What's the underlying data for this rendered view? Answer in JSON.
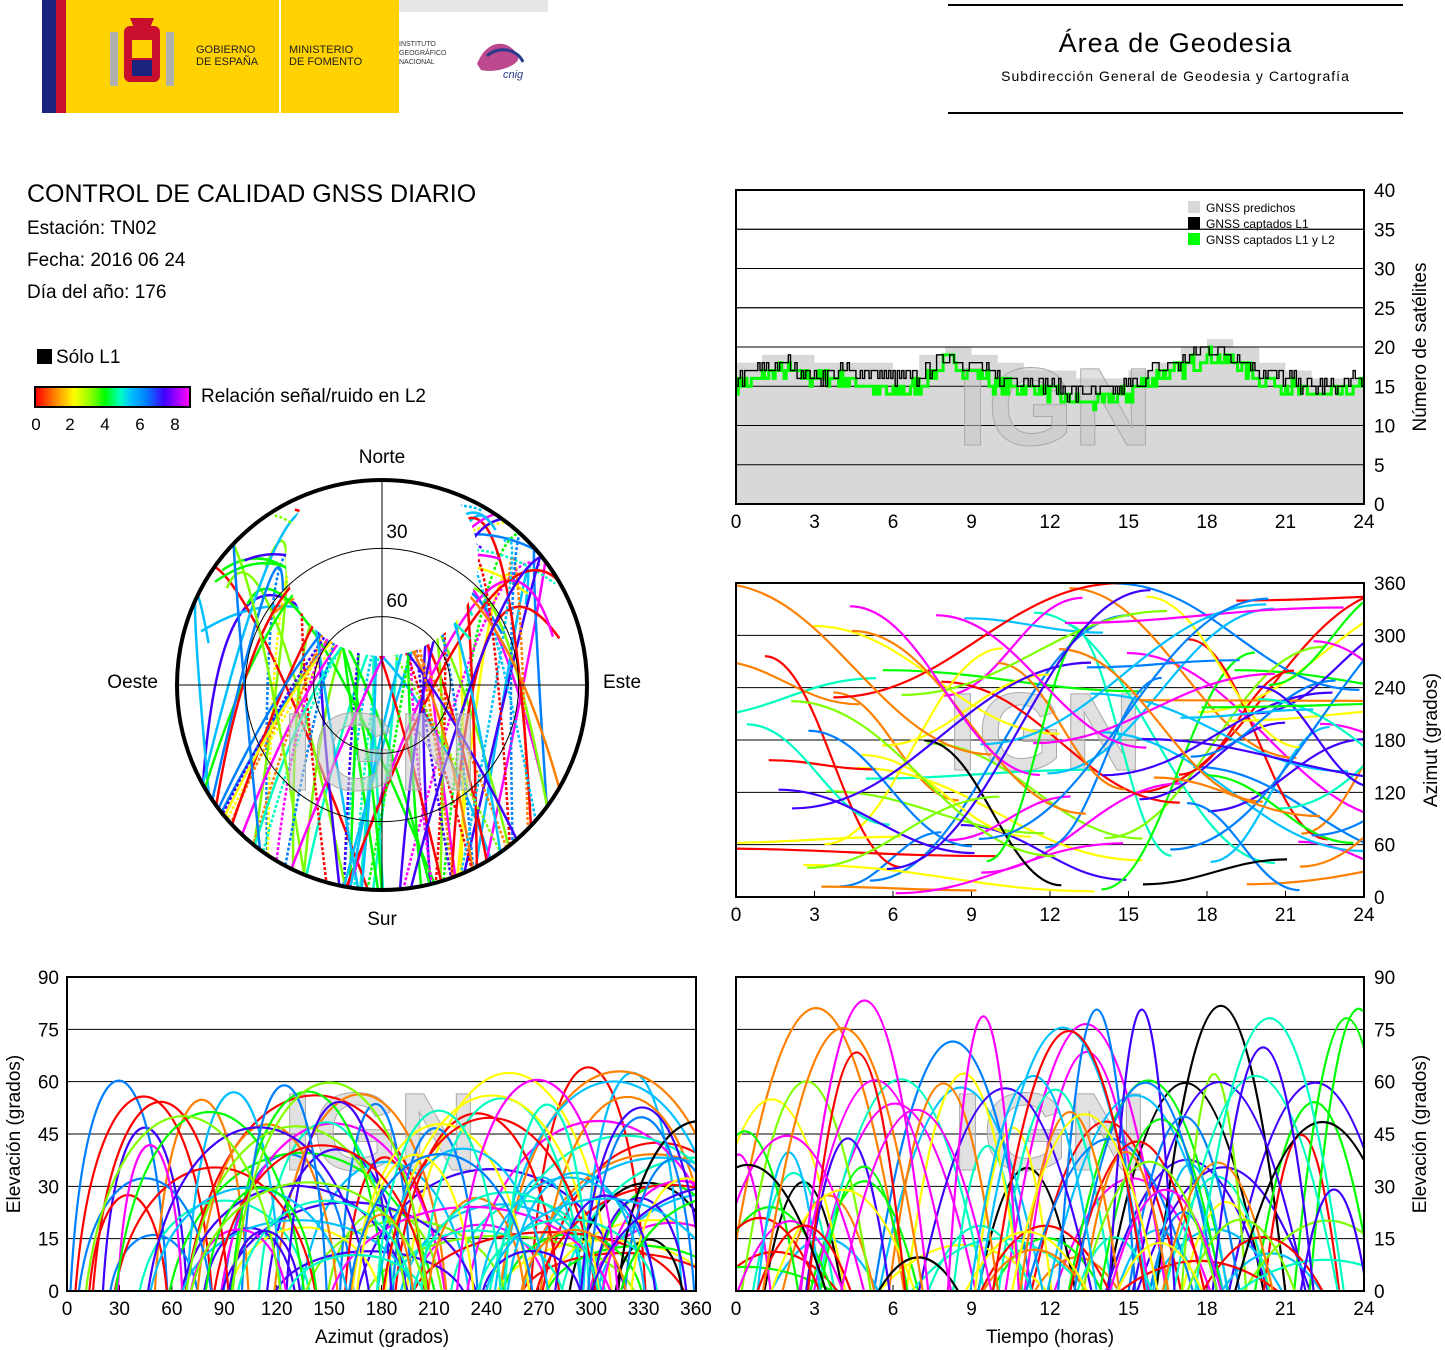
{
  "header": {
    "gobierno": [
      "GOBIERNO",
      "DE ESPAÑA"
    ],
    "ministerio": [
      "MINISTERIO",
      "DE FOMENTO"
    ],
    "instituto": [
      "INSTITUTO",
      "GEOGRÁFICO",
      "NACIONAL"
    ],
    "cnig": "cnig",
    "area_title": "Área de Geodesia",
    "area_subtitle": "Subdirección General de Geodesia y Cartografía"
  },
  "report": {
    "title": "CONTROL DE CALIDAD GNSS DIARIO",
    "station": "Estación: TN02",
    "date": "Fecha: 2016 06 24",
    "doy": "Día del año: 176"
  },
  "legend": {
    "l1_only": "Sólo L1",
    "snr_label": "Relación señal/ruido en L2",
    "snr_ticks": [
      "0",
      "2",
      "4",
      "6",
      "8"
    ],
    "snr_colors": [
      "#ff0000",
      "#ff8000",
      "#ffff00",
      "#80ff00",
      "#00ff00",
      "#00ffc0",
      "#00c0ff",
      "#0080ff",
      "#4000ff",
      "#ff00ff"
    ]
  },
  "watermark": "IGN",
  "chart_data": [
    {
      "type": "area",
      "id": "satellites",
      "ylabel": "Número de satélites",
      "xlim": [
        0,
        24
      ],
      "ylim": [
        0,
        40
      ],
      "xticks": [
        "0",
        "3",
        "6",
        "9",
        "12",
        "15",
        "18",
        "21",
        "24"
      ],
      "yticks": [
        "0",
        "5",
        "10",
        "15",
        "20",
        "25",
        "30",
        "35",
        "40"
      ],
      "legend_position": "top-right",
      "series": [
        {
          "name": "GNSS predichos",
          "color": "#d8d8d8",
          "x": [
            0,
            1,
            2,
            3,
            4,
            5,
            6,
            7,
            8,
            9,
            10,
            11,
            12,
            13,
            14,
            15,
            16,
            17,
            18,
            19,
            20,
            21,
            22,
            23,
            24
          ],
          "values": [
            18,
            19,
            19,
            18,
            18,
            18,
            17,
            19,
            20,
            19,
            18,
            17,
            17,
            16,
            16,
            17,
            18,
            20,
            21,
            20,
            18,
            17,
            16,
            16,
            17
          ]
        },
        {
          "name": "GNSS captados L1",
          "color": "#000000",
          "x": [
            0,
            1,
            2,
            3,
            4,
            5,
            6,
            7,
            8,
            9,
            10,
            11,
            12,
            13,
            14,
            15,
            16,
            17,
            18,
            19,
            20,
            21,
            22,
            23,
            24
          ],
          "values": [
            16,
            17,
            18,
            16,
            17,
            17,
            16,
            16,
            19,
            18,
            16,
            16,
            15,
            14,
            14,
            15,
            17,
            18,
            20,
            19,
            17,
            16,
            15,
            15,
            16
          ]
        },
        {
          "name": "GNSS captados L1 y L2",
          "color": "#00ff00",
          "x": [
            0,
            1,
            2,
            3,
            4,
            5,
            6,
            7,
            8,
            9,
            10,
            11,
            12,
            13,
            14,
            15,
            16,
            17,
            18,
            19,
            20,
            21,
            22,
            23,
            24
          ],
          "values": [
            15,
            16,
            17,
            16,
            16,
            15,
            14,
            15,
            18,
            17,
            15,
            15,
            14,
            13,
            13,
            14,
            16,
            17,
            19,
            18,
            16,
            15,
            14,
            14,
            15
          ]
        }
      ]
    },
    {
      "type": "scatter",
      "id": "skyplot",
      "labels": {
        "north": "Norte",
        "south": "Sur",
        "east": "Este",
        "west": "Oeste"
      },
      "rings": [
        "30",
        "60"
      ]
    },
    {
      "type": "scatter",
      "id": "azimuth_time",
      "ylabel": "Azimut (grados)",
      "xlim": [
        0,
        24
      ],
      "ylim": [
        0,
        360
      ],
      "xticks": [
        "0",
        "3",
        "6",
        "9",
        "12",
        "15",
        "18",
        "21",
        "24"
      ],
      "yticks": [
        "0",
        "60",
        "120",
        "180",
        "240",
        "300",
        "360"
      ]
    },
    {
      "type": "scatter",
      "id": "elevation_azimuth",
      "xlabel": "Azimut (grados)",
      "ylabel": "Elevación (grados)",
      "xlim": [
        0,
        360
      ],
      "ylim": [
        0,
        90
      ],
      "xticks": [
        "0",
        "30",
        "60",
        "90",
        "120",
        "150",
        "180",
        "210",
        "240",
        "270",
        "300",
        "330",
        "360"
      ],
      "yticks": [
        "0",
        "15",
        "30",
        "45",
        "60",
        "75",
        "90"
      ]
    },
    {
      "type": "scatter",
      "id": "elevation_time",
      "xlabel": "Tiempo (horas)",
      "ylabel": "Elevación (grados)",
      "xlim": [
        0,
        24
      ],
      "ylim": [
        0,
        90
      ],
      "xticks": [
        "0",
        "3",
        "6",
        "9",
        "12",
        "15",
        "18",
        "21",
        "24"
      ],
      "yticks": [
        "0",
        "15",
        "30",
        "45",
        "60",
        "75",
        "90"
      ]
    }
  ]
}
